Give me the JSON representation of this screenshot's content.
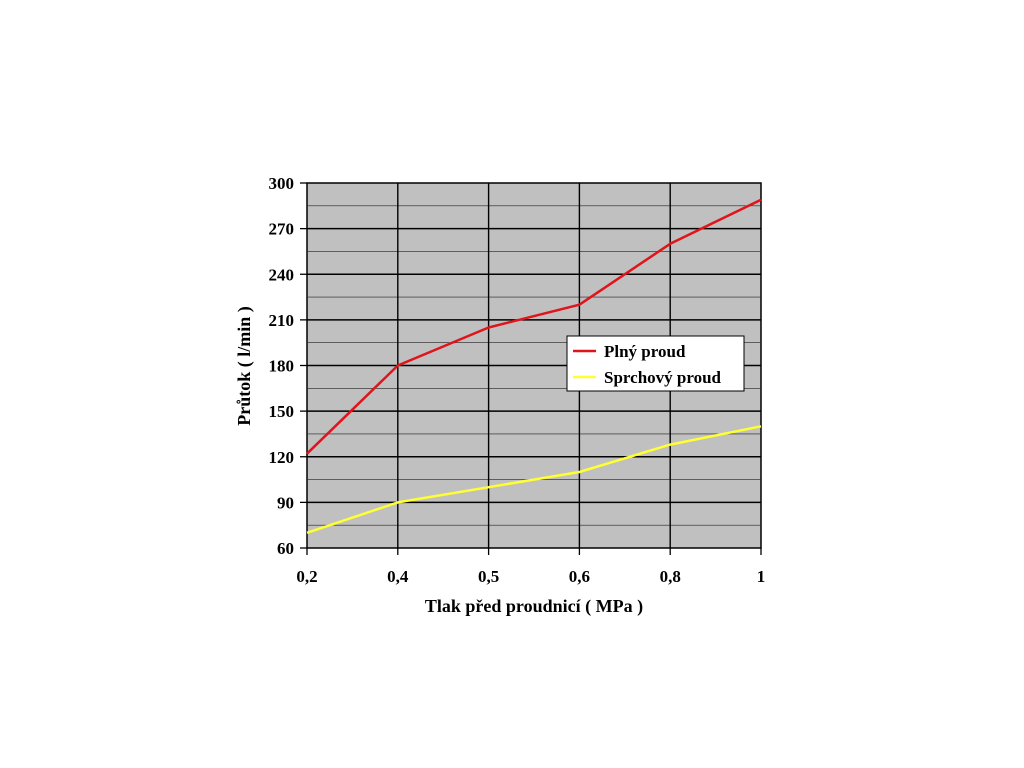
{
  "chart_data": {
    "type": "line",
    "title": "",
    "xlabel": "Tlak před proudnicí ( MPa )",
    "ylabel": "Průtok ( l/min )",
    "categories": [
      "0,2",
      "0,4",
      "0,5",
      "0,6",
      "0,8",
      "1"
    ],
    "ylim": [
      60,
      300
    ],
    "yticks": [
      "60",
      "90",
      "120",
      "150",
      "180",
      "210",
      "240",
      "270",
      "300"
    ],
    "grid": true,
    "plot_background": "#c0c0c0",
    "legend_position": "right",
    "series": [
      {
        "name": "Plný proud",
        "color": "#e0141a",
        "values": [
          122,
          180,
          205,
          220,
          260,
          289
        ]
      },
      {
        "name": "Sprchový proud",
        "color": "#ffff33",
        "values": [
          70,
          90,
          100,
          110,
          128,
          140
        ]
      }
    ]
  }
}
